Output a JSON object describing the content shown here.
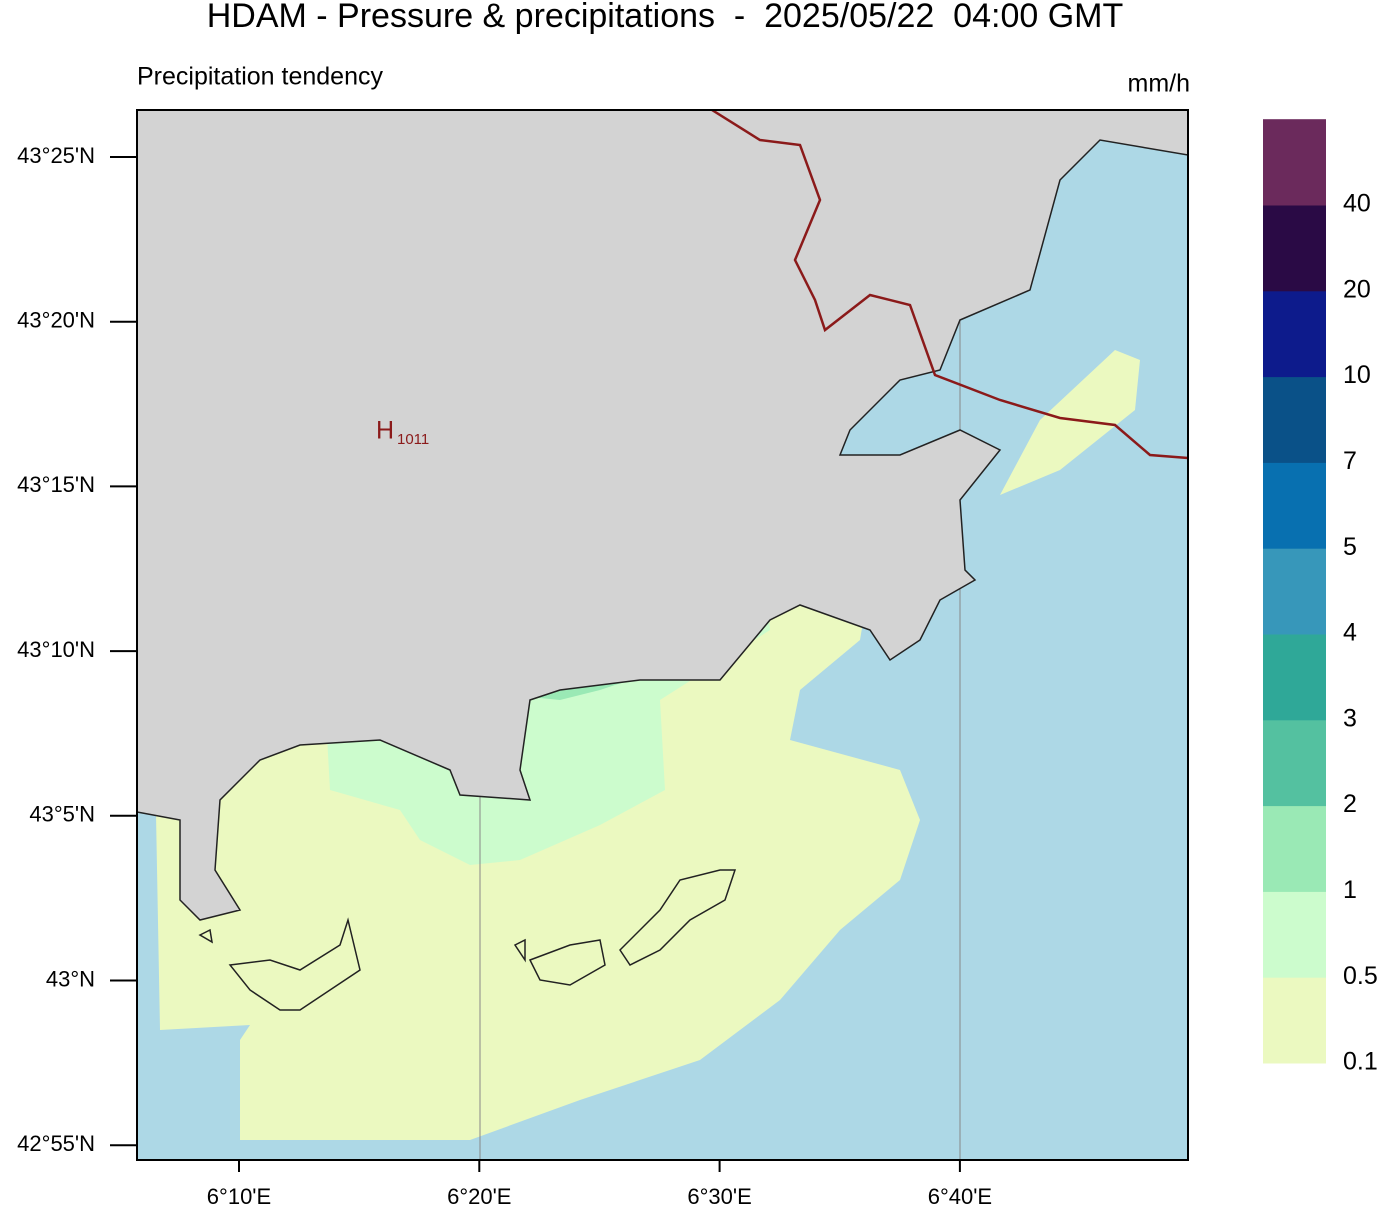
{
  "header": {
    "title": "HDAM - Pressure & precipitations  -  2025/05/22  04:00 GMT",
    "subtitle": "Precipitation tendency",
    "unit": "mm/h"
  },
  "map": {
    "y_labels": [
      "43°25'N",
      "43°20'N",
      "43°15'N",
      "43°10'N",
      "43°5'N",
      "43°N",
      "42°55'N"
    ],
    "x_labels": [
      "6°10'E",
      "6°20'E",
      "6°30'E",
      "6°40'E"
    ],
    "pressure_centers": [
      {
        "label": "H",
        "value": 1011
      }
    ]
  },
  "legend": {
    "levels": [
      0.1,
      0.5,
      1,
      2,
      3,
      4,
      5,
      7,
      10,
      20,
      40
    ],
    "colors": [
      "#ebf9c0",
      "#ccfccd",
      "#9ae9b5",
      "#54c1a0",
      "#2fa898",
      "#3797ba",
      "#0870b0",
      "#0a5188",
      "#0d1b8c",
      "#2a0a45",
      "#6b2a5c"
    ]
  }
}
